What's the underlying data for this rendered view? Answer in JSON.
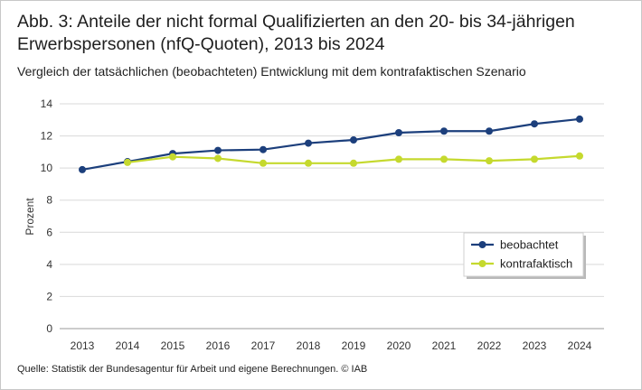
{
  "title": "Abb. 3: Anteile der nicht formal Qualifizierten an den 20- bis 34-jährigen Erwerbspersonen (nfQ-Quoten), 2013 bis 2024",
  "subtitle": "Vergleich der tatsächlichen (beobachteten) Entwicklung mit dem kontrafaktischen Szenario",
  "source": "Quelle: Statistik der Bundesagentur für Arbeit und eigene Berechnungen.  © IAB",
  "chart_data": {
    "type": "line",
    "title": "Abb. 3: Anteile der nicht formal Qualifizierten an den 20- bis 34-jährigen Erwerbspersonen (nfQ-Quoten), 2013 bis 2024",
    "subtitle": "Vergleich der tatsächlichen (beobachteten) Entwicklung mit dem kontrafaktischen Szenario",
    "xlabel": "",
    "ylabel": "Prozent",
    "x": [
      "2013",
      "2014",
      "2015",
      "2016",
      "2017",
      "2018",
      "2019",
      "2020",
      "2021",
      "2022",
      "2023",
      "2024"
    ],
    "ylim": [
      0,
      14
    ],
    "yticks": [
      0,
      2,
      4,
      6,
      8,
      10,
      12,
      14
    ],
    "grid": "horizontal",
    "legend_position": "bottom-right",
    "series": [
      {
        "name": "beobachtet",
        "color": "#1c3f7c",
        "values": [
          9.9,
          10.4,
          10.9,
          11.1,
          11.15,
          11.55,
          11.75,
          12.2,
          12.3,
          12.3,
          12.75,
          13.05
        ]
      },
      {
        "name": "kontrafaktisch",
        "color": "#c5d92e",
        "values": [
          null,
          10.35,
          10.7,
          10.6,
          10.3,
          10.3,
          10.3,
          10.55,
          10.55,
          10.45,
          10.55,
          10.75
        ]
      }
    ]
  }
}
